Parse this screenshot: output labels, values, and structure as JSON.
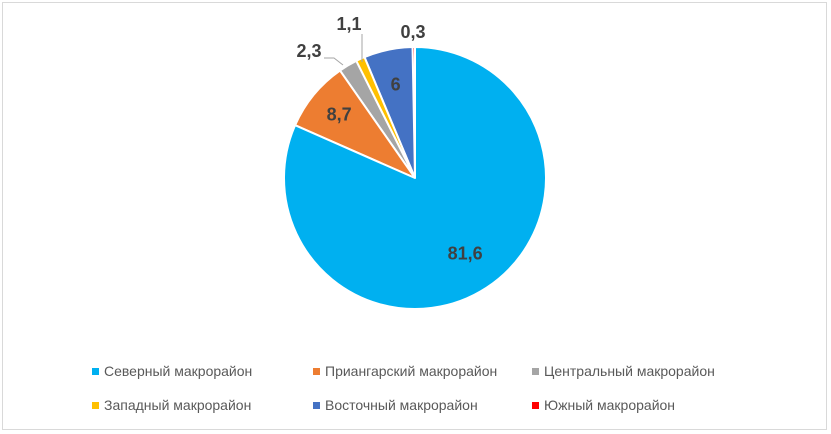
{
  "chart_data": {
    "type": "pie",
    "title": "",
    "slices": [
      {
        "name": "Северный макрорайон",
        "value": 81.6,
        "label": "81,6",
        "color": "#00B0F0"
      },
      {
        "name": "Приангарский макрорайон",
        "value": 8.7,
        "label": "8,7",
        "color": "#ED7D31"
      },
      {
        "name": "Центральный макрорайон",
        "value": 2.3,
        "label": "2,3",
        "color": "#A5A5A5"
      },
      {
        "name": "Западный макрорайон",
        "value": 1.1,
        "label": "1,1",
        "color": "#FFC000"
      },
      {
        "name": "Восточный макрорайон",
        "value": 6,
        "label": "6",
        "color": "#4472C4"
      },
      {
        "name": "Южный макрорайон",
        "value": 0.3,
        "label": "0,3",
        "color": "#FF0000"
      }
    ],
    "legend_position": "bottom"
  }
}
